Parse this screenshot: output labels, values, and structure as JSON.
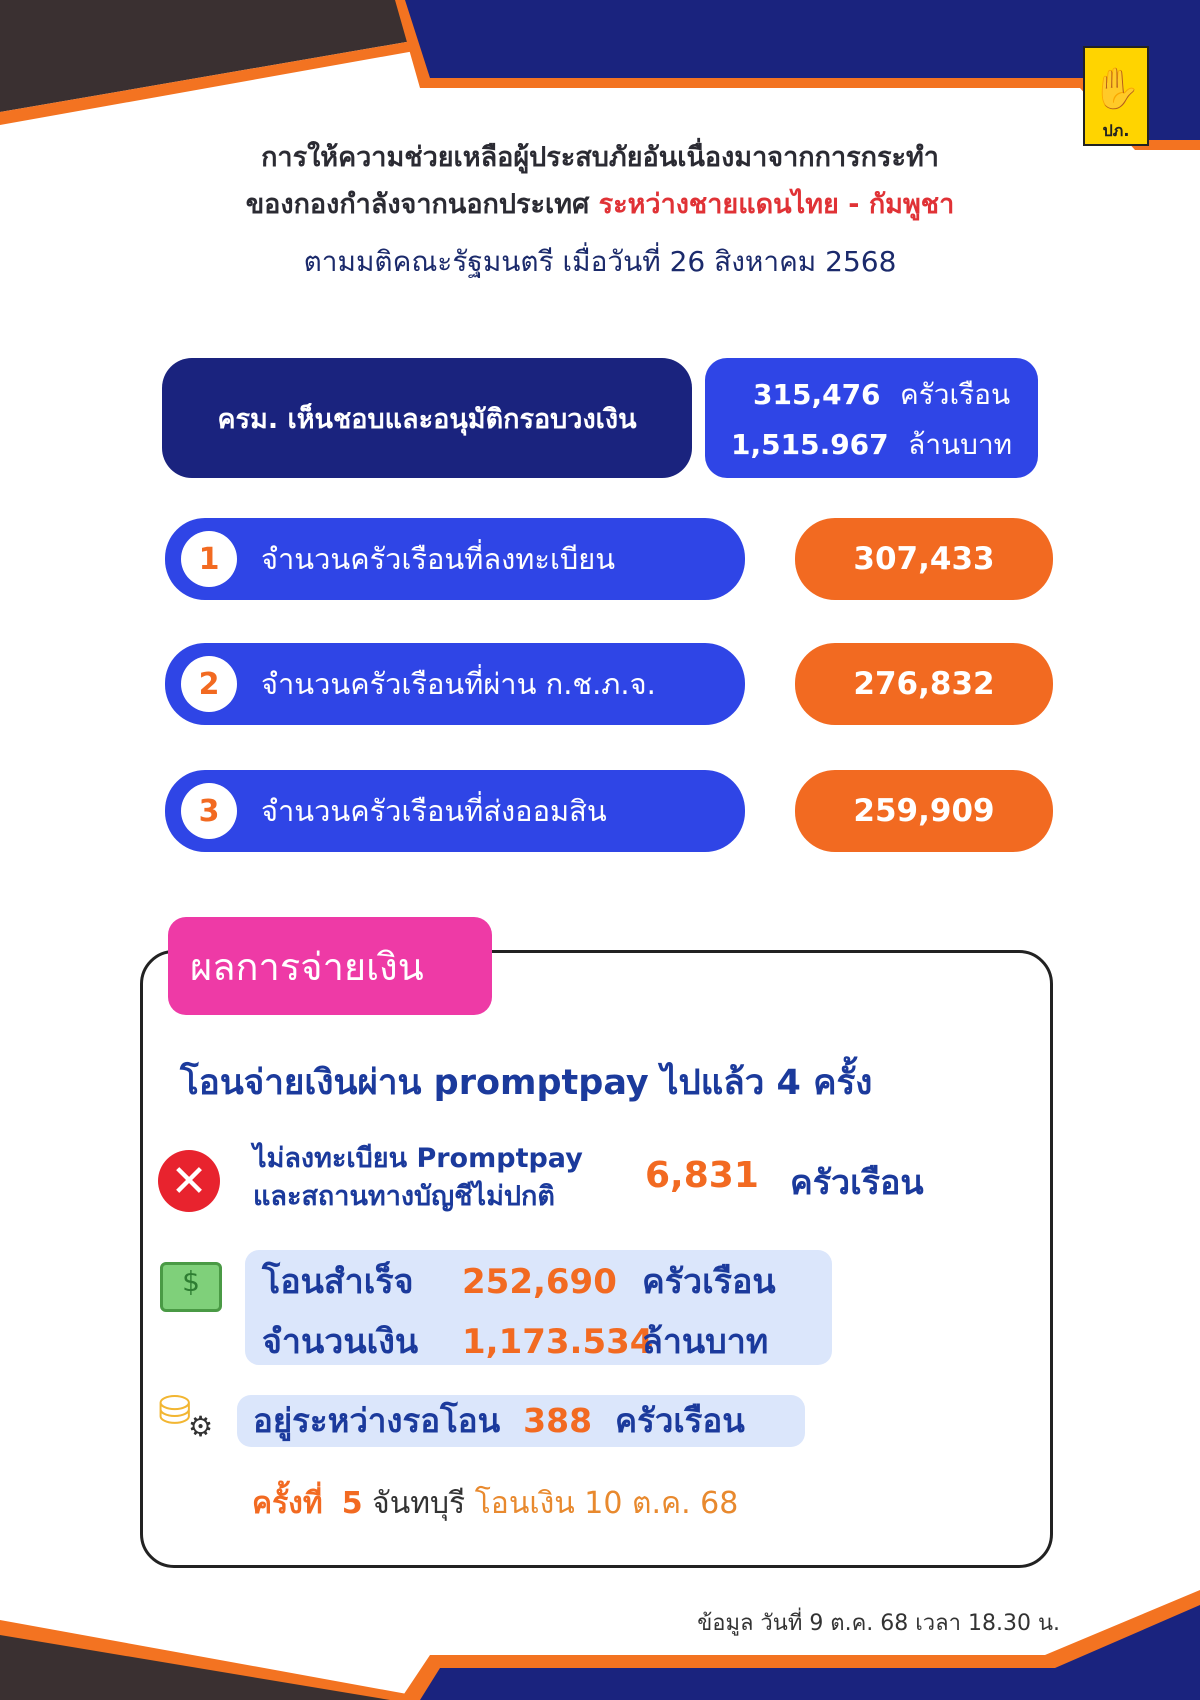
{
  "logo": {
    "text": "ปภ.",
    "icon": "hand-emblem-logo"
  },
  "header": {
    "line1": "การให้ความช่วยเหลือผู้ประสบภัยอันเนื่องมาจากการกระทำ",
    "line2_a": "ของกองกำลังจากนอกประเทศ",
    "line2_b": "ระหว่างชายแดนไทย - กัมพูชา",
    "subtitle": "ตามมติคณะรัฐมนตรี เมื่อวันที่ 26 สิงหาคม 2568"
  },
  "budget": {
    "label": "ครม. เห็นชอบและอนุมัติกรอบวงเงิน",
    "households": "315,476",
    "households_unit": "ครัวเรือน",
    "amount": "1,515.967",
    "amount_unit": "ล้านบาท"
  },
  "steps": [
    {
      "num": "1",
      "label": "จำนวนครัวเรือนที่ลงทะเบียน",
      "value": "307,433"
    },
    {
      "num": "2",
      "label": "จำนวนครัวเรือนที่ผ่าน ก.ช.ภ.จ.",
      "value": "276,832"
    },
    {
      "num": "3",
      "label": "จำนวนครัวเรือนที่ส่งออมสิน",
      "value": "259,909"
    }
  ],
  "payment": {
    "tag": "ผลการจ่ายเงิน",
    "heading": "โอนจ่ายเงินผ่าน promptpay ไปแล้ว 4 ครั้ง",
    "failed": {
      "line1": "ไม่ลงทะเบียน Promptpay",
      "line2": "และสถานทางบัญชีไม่ปกติ",
      "value": "6,831",
      "unit": "ครัวเรือน"
    },
    "success": {
      "label": "โอนสำเร็จ",
      "value": "252,690",
      "unit": "ครัวเรือน",
      "amount_label": "จำนวนเงิน",
      "amount": "1,173.534",
      "amount_unit": "ล้านบาท"
    },
    "pending": {
      "label": "อยู่ระหว่างรอโอน",
      "value": "388",
      "unit": "ครัวเรือน"
    },
    "next": {
      "round": "ครั้งที่",
      "round_no": "5",
      "province": "จันทบุรี",
      "text": "โอนเงิน 10 ต.ค. 68"
    }
  },
  "footer": "ข้อมูล วันที่ 9 ต.ค. 68 เวลา 18.30 น.",
  "colors": {
    "navy": "#1a237e",
    "blue": "#2f45e6",
    "orange": "#f26a21",
    "pink": "#ee3aa6",
    "dark": "#3a3031"
  }
}
